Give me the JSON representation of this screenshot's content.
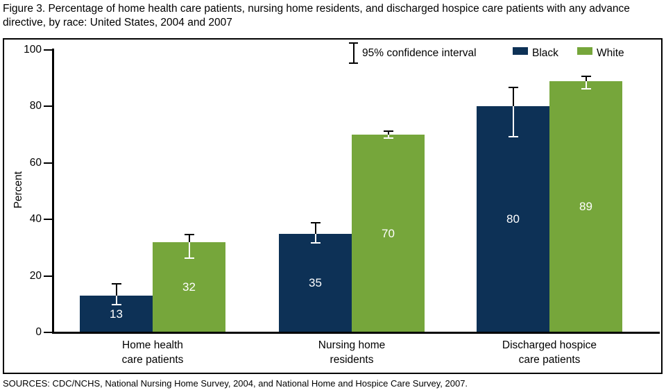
{
  "figure": {
    "title": "Figure 3. Percentage of home health care patients, nursing home residents, and discharged hospice care patients with any advance directive, by race: United States, 2004 and 2007",
    "source": "SOURCES: CDC/NCHS, National Nursing Home Survey, 2004, and National Home and Hospice Care Survey, 2007."
  },
  "chart_data": {
    "type": "bar",
    "title": "Percentage with any advance directive, by race, 2004 and 2007",
    "ylabel": "Percent",
    "xlabel": "",
    "ylim": [
      0,
      100
    ],
    "yticks": [
      0,
      20,
      40,
      60,
      80,
      100
    ],
    "grid": false,
    "legend_position": "top",
    "legend": {
      "ci_label": "95% confidence interval"
    },
    "categories": [
      "Home health\ncare patients",
      "Nursing home\nresidents",
      "Discharged hospice\ncare patients"
    ],
    "series": [
      {
        "name": "Black",
        "color": "#0d3156",
        "values": [
          13,
          35,
          80
        ],
        "ci_low": [
          9.5,
          31.5,
          69
        ],
        "ci_high": [
          17.5,
          39,
          87
        ]
      },
      {
        "name": "White",
        "color": "#76a63b",
        "values": [
          32,
          70,
          89
        ],
        "ci_low": [
          26,
          68.5,
          86
        ],
        "ci_high": [
          35,
          71.5,
          91
        ]
      }
    ],
    "error_bar_style": {
      "above_bar_color": "#000000",
      "inside_bar_color": "#ffffff"
    }
  }
}
